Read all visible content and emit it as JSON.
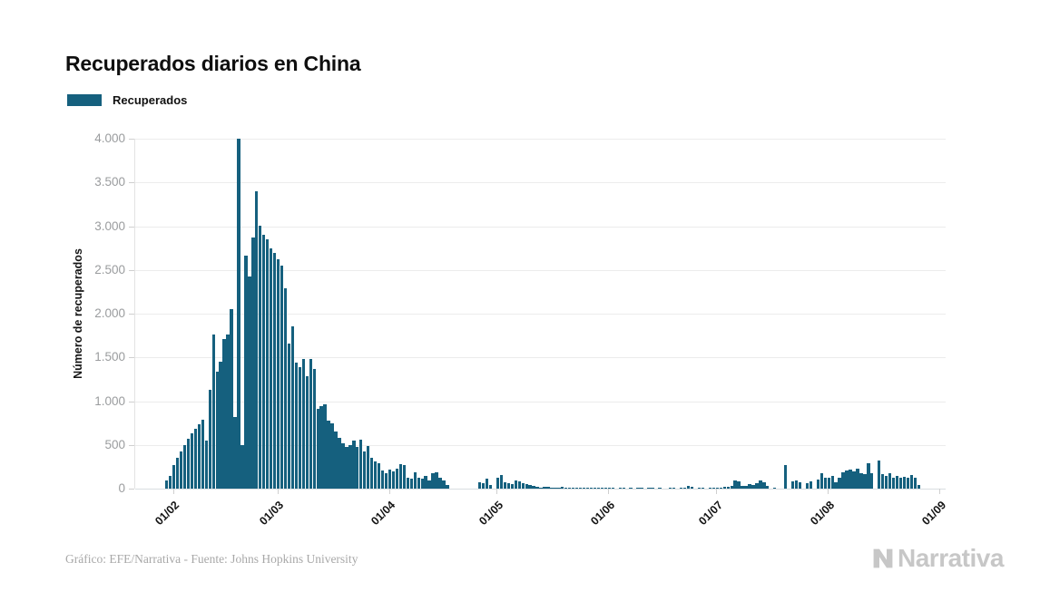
{
  "title": "Recuperados diarios en China",
  "legend": {
    "label": "Recuperados",
    "color": "#15607e"
  },
  "footer": {
    "credit": "Gráfico: EFE/Narrativa - Fuente: Johns Hopkins University",
    "brand": "Narrativa"
  },
  "chart_data": {
    "type": "bar",
    "title": "Recuperados diarios en China",
    "series_name": "Recuperados",
    "xlabel": "",
    "ylabel": "Número de recuperados",
    "ylim": [
      0,
      4000
    ],
    "grid": true,
    "legend_position": "top-left",
    "bar_color": "#15607e",
    "y_tick_labels": [
      "0",
      "500",
      "1.000",
      "1.500",
      "2.000",
      "2.500",
      "3.000",
      "3.500",
      "4.000"
    ],
    "y_tick_values": [
      0,
      500,
      1000,
      1500,
      2000,
      2500,
      3000,
      3500,
      4000
    ],
    "x_tick_labels": [
      "01/02",
      "01/03",
      "01/04",
      "01/05",
      "01/06",
      "01/07",
      "01/08",
      "01/09"
    ],
    "x_tick_day_indices": [
      2,
      31,
      62,
      92,
      123,
      153,
      184,
      215
    ],
    "x_start_date": "30/01/2020",
    "x_end_date": "01/09/2020",
    "values": [
      90,
      150,
      270,
      350,
      425,
      495,
      570,
      630,
      685,
      735,
      785,
      545,
      1130,
      1765,
      1340,
      1450,
      1710,
      1765,
      2050,
      820,
      4000,
      495,
      2665,
      2430,
      2870,
      3400,
      3010,
      2900,
      2855,
      2750,
      2690,
      2620,
      2550,
      2290,
      1655,
      1860,
      1440,
      1390,
      1480,
      1290,
      1480,
      1370,
      910,
      940,
      960,
      780,
      750,
      650,
      580,
      520,
      480,
      500,
      545,
      475,
      560,
      425,
      483,
      352,
      310,
      293,
      203,
      179,
      214,
      197,
      224,
      283,
      266,
      128,
      110,
      186,
      128,
      110,
      145,
      93,
      179,
      190,
      128,
      93,
      45,
      0,
      0,
      0,
      0,
      0,
      0,
      0,
      0,
      69,
      59,
      110,
      41,
      0,
      128,
      152,
      69,
      59,
      48,
      93,
      86,
      59,
      48,
      41,
      34,
      24,
      10,
      24,
      24,
      12,
      10,
      8,
      17,
      10,
      6,
      8,
      6,
      8,
      5,
      8,
      6,
      5,
      8,
      6,
      5,
      8,
      6,
      0,
      4,
      8,
      0,
      5,
      0,
      6,
      4,
      0,
      6,
      8,
      0,
      6,
      0,
      0,
      6,
      8,
      0,
      10,
      8,
      35,
      20,
      0,
      8,
      12,
      0,
      8,
      10,
      15,
      12,
      20,
      25,
      30,
      93,
      80,
      35,
      30,
      48,
      40,
      59,
      90,
      75,
      30,
      0,
      5,
      0,
      0,
      270,
      0,
      83,
      93,
      69,
      0,
      59,
      83,
      0,
      100,
      179,
      128,
      121,
      145,
      76,
      121,
      190,
      203,
      221,
      197,
      231,
      179,
      162,
      290,
      179,
      0,
      317,
      162,
      145,
      179,
      121,
      145,
      128,
      134,
      128,
      155,
      121,
      41,
      0,
      0,
      0,
      0,
      0
    ]
  }
}
